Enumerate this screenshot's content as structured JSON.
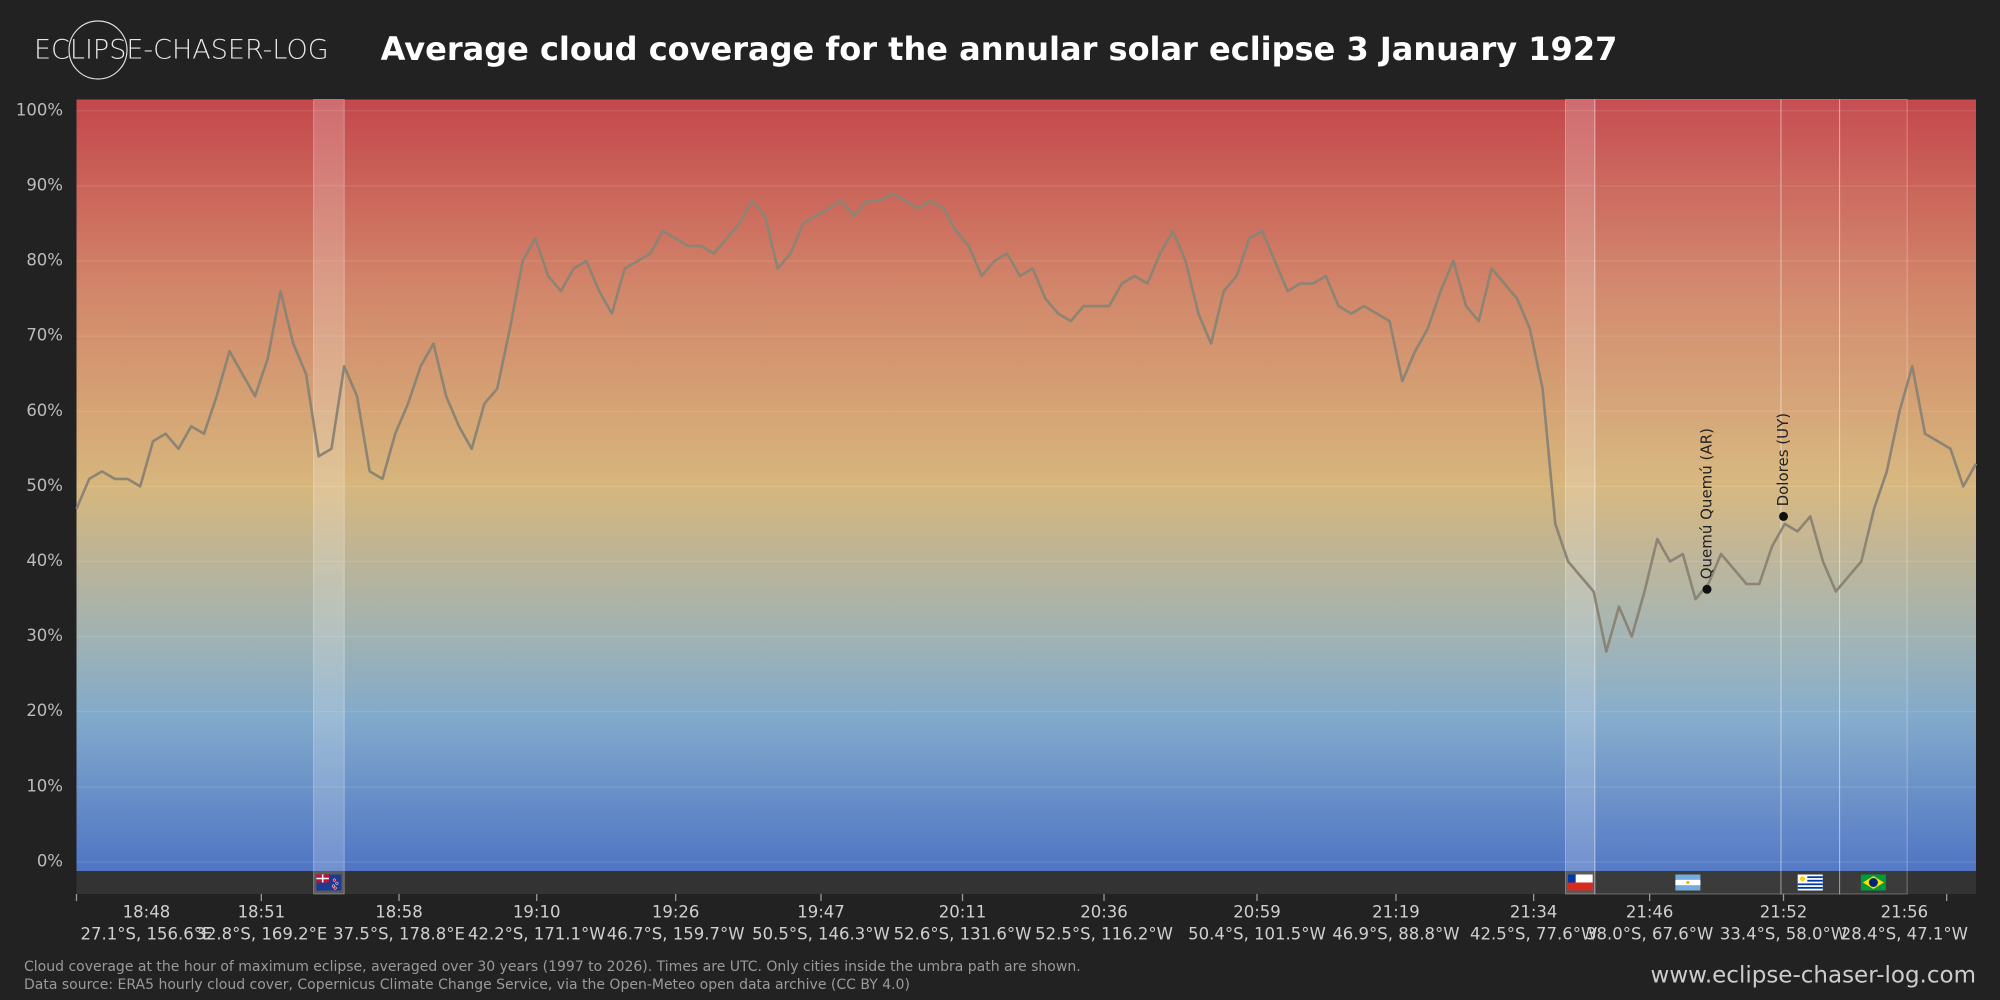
{
  "logo": "ECLIPSE-CHASER-LOG",
  "chart_data": {
    "type": "line",
    "title": "Average cloud coverage for the annular solar eclipse 3 January 1927",
    "color": "#8c8474",
    "values": [
      47,
      51,
      52,
      51,
      51,
      50,
      56,
      57,
      55,
      58,
      57,
      62,
      68,
      65,
      62,
      67,
      76,
      69,
      65,
      54,
      55,
      66,
      62,
      52,
      51,
      57,
      61,
      66,
      69,
      62,
      58,
      55,
      61,
      63,
      71,
      80,
      83,
      78,
      76,
      79,
      80,
      76,
      73,
      79,
      80,
      81,
      84,
      83,
      82,
      82,
      81,
      83,
      85,
      88,
      86,
      79,
      81,
      85,
      86,
      87,
      88,
      86,
      88,
      88,
      89,
      88,
      87,
      88,
      87,
      84,
      82,
      78,
      80,
      81,
      78,
      79,
      75,
      73,
      72,
      74,
      74,
      74,
      77,
      78,
      77,
      81,
      84,
      80,
      73,
      69,
      76,
      78,
      83,
      84,
      80,
      76,
      77,
      77,
      78,
      74,
      73,
      74,
      73,
      72,
      64,
      68,
      71,
      76,
      80,
      74,
      72,
      79,
      77,
      75,
      71,
      63,
      45,
      40,
      38,
      36,
      28,
      34,
      30,
      36,
      43,
      40,
      41,
      35,
      37,
      41,
      39,
      37,
      37,
      42,
      45,
      44,
      46,
      40,
      36,
      38,
      40,
      47,
      52,
      60,
      66,
      57,
      56,
      55,
      50,
      53
    ],
    "xlim": [
      0,
      149
    ],
    "ylim": [
      -1.2,
      101.5
    ],
    "grid": true,
    "yticks": [
      {
        "value": 0,
        "label": "0%"
      },
      {
        "value": 10,
        "label": "10%"
      },
      {
        "value": 20,
        "label": "20%"
      },
      {
        "value": 30,
        "label": "30%"
      },
      {
        "value": 40,
        "label": "40%"
      },
      {
        "value": 50,
        "label": "50%"
      },
      {
        "value": 60,
        "label": "60%"
      },
      {
        "value": 70,
        "label": "70%"
      },
      {
        "value": 80,
        "label": "80%"
      },
      {
        "value": 90,
        "label": "90%"
      },
      {
        "value": 100,
        "label": "100%"
      }
    ],
    "xticks": [
      {
        "value": 0,
        "label": "18:48",
        "sublabel": "27.1°S, 156.6°E"
      },
      {
        "value": 14.5,
        "label": "18:51",
        "sublabel": "32.8°S, 169.2°E"
      },
      {
        "value": 25.3,
        "label": "18:58",
        "sublabel": "37.5°S, 178.8°E"
      },
      {
        "value": 36.1,
        "label": "19:10",
        "sublabel": "42.2°S, 171.1°W"
      },
      {
        "value": 47,
        "label": "19:26",
        "sublabel": "46.7°S, 159.7°W"
      },
      {
        "value": 58.4,
        "label": "19:47",
        "sublabel": "50.5°S, 146.3°W"
      },
      {
        "value": 69.5,
        "label": "20:11",
        "sublabel": "52.6°S, 131.6°W"
      },
      {
        "value": 80.6,
        "label": "20:36",
        "sublabel": "52.5°S, 116.2°W"
      },
      {
        "value": 92.6,
        "label": "20:59",
        "sublabel": "50.4°S, 101.5°W"
      },
      {
        "value": 103.5,
        "label": "21:19",
        "sublabel": "46.9°S, 88.8°W"
      },
      {
        "value": 114.3,
        "label": "21:34",
        "sublabel": "42.5°S, 77.6°W"
      },
      {
        "value": 123.4,
        "label": "21:46",
        "sublabel": "38.0°S, 67.6°W"
      },
      {
        "value": 133.9,
        "label": "21:52",
        "sublabel": "33.4°S, 58.0°W"
      },
      {
        "value": 146.7,
        "label": "21:56",
        "sublabel": "28.4°S, 47.1°W"
      }
    ],
    "regions": [
      {
        "start": 18.6,
        "end": 21,
        "highlight": true
      },
      {
        "start": 116.8,
        "end": 119.1,
        "highlight": true
      },
      {
        "start": 119.1,
        "end": 133.7,
        "highlight": false
      },
      {
        "start": 133.7,
        "end": 138.3,
        "highlight": false
      },
      {
        "start": 138.3,
        "end": 143.6,
        "highlight": false
      }
    ],
    "annotations": [
      {
        "x": 127.9,
        "y": 36.3,
        "text": "Quemú Quemú (AR)"
      },
      {
        "x": 133.9,
        "y": 46,
        "text": "Dolores (UY)"
      }
    ]
  },
  "footer": {
    "notes": [
      "Cloud coverage at the hour of maximum eclipse, averaged over 30 years (1997 to 2026). Times are UTC. Only cities inside the umbra path are shown.",
      "Data source: ERA5 hourly cloud cover, Copernicus Climate Change Service, via the Open-Meteo open data archive (CC BY 4.0)"
    ],
    "url": "www.eclipse-chaser-log.com"
  }
}
